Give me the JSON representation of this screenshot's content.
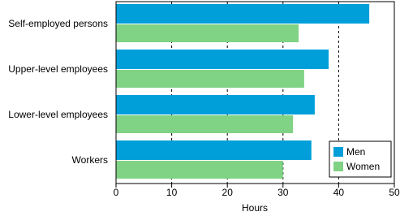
{
  "chart_data": {
    "type": "barh",
    "categories": [
      "Self-employed persons",
      "Upper-level employees",
      "Lower-level employees",
      "Workers"
    ],
    "series": [
      {
        "name": "Men",
        "color": "#009fda",
        "values": [
          45.5,
          38.2,
          35.7,
          35.1
        ]
      },
      {
        "name": "Women",
        "color": "#80d284",
        "values": [
          32.8,
          33.8,
          31.8,
          30.0
        ]
      }
    ],
    "xlabel": "Hours",
    "xlim": [
      0,
      50
    ],
    "xticks": [
      0,
      10,
      20,
      30,
      40,
      50
    ],
    "grid": true,
    "legend": "lower right"
  }
}
